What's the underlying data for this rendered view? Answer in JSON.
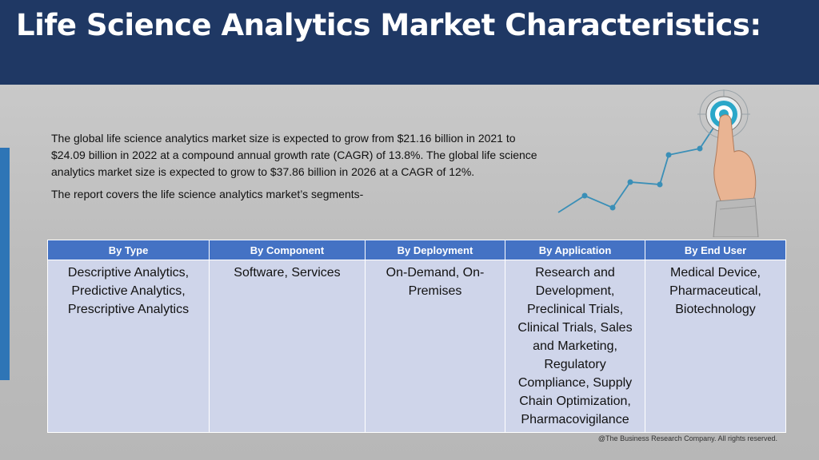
{
  "title": "Life Science Analytics Market Characteristics:",
  "intro": {
    "paragraph": "The global life science analytics market size is expected to grow from $21.16 billion in 2021 to $24.09 billion in 2022 at a compound annual growth rate (CAGR) of 13.8%. The global life science analytics market size is expected to grow to $37.86 billion in 2026 at a CAGR of 12%.",
    "segments_line": "The report covers the life science analytics market’s segments-"
  },
  "table": {
    "headers": [
      "By Type",
      "By Component",
      "By Deployment",
      "By Application",
      "By End User"
    ],
    "cells": [
      "Descriptive Analytics, Predictive Analytics, Prescriptive Analytics",
      "Software, Services",
      "On-Demand, On-Premises",
      "Research and Development, Preclinical Trials, Clinical Trials, Sales and Marketing, Regulatory Compliance, Supply Chain Optimization, Pharmacovigilance",
      "Medical Device, Pharmaceutical, Biotechnology"
    ]
  },
  "footer": "@The Business Research Company. All rights reserved.",
  "colors": {
    "header_bg": "#1f3864",
    "table_header_bg": "#4472c4",
    "table_cell_bg": "#cfd5ea",
    "accent": "#2e75b6",
    "graph_line": "#3a8fb7"
  },
  "graphic": {
    "icon": "hand-touching-target-growth-line-icon"
  }
}
